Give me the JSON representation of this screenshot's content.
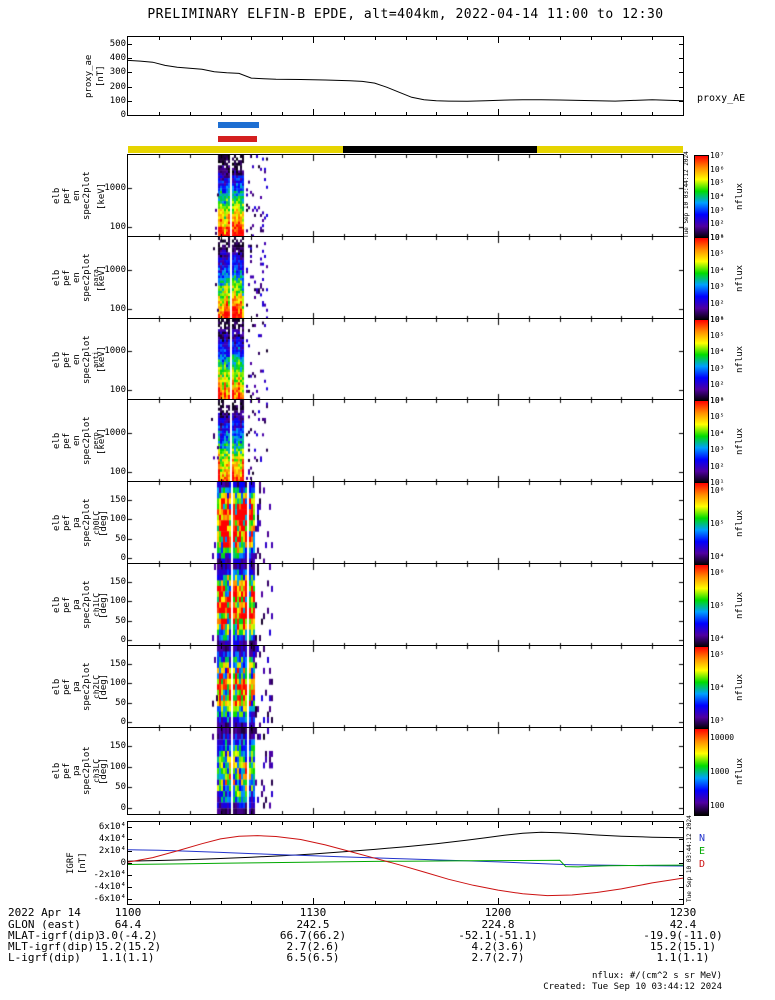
{
  "title": "PRELIMINARY ELFIN-B EPDE, alt=404km, 2022-04-14 11:00 to 12:30",
  "proxy_panel": {
    "ylabel_lines": [
      "proxy_ae",
      "[nT]"
    ],
    "ytick_labels": [
      "500",
      "400",
      "300",
      "200",
      "100",
      "0"
    ],
    "ytick_values": [
      500,
      400,
      300,
      200,
      100,
      0
    ],
    "right_label": "proxy_AE"
  },
  "status_bars": {
    "blue": "#1e6fd2",
    "red": "#d42020",
    "yellow": "#e6d400",
    "black_segment": "#000000",
    "blue_span_minutes": [
      14.6,
      21.3
    ],
    "red_span_minutes": [
      14.6,
      20.9
    ],
    "black_span_minutes": [
      34.9,
      66.3
    ]
  },
  "colormap": {
    "name": "rainbow",
    "stops": [
      "#000000",
      "#5000a0",
      "#0000ff",
      "#00a0ff",
      "#00dc00",
      "#ffff00",
      "#ff8c00",
      "#ff0000"
    ]
  },
  "spectro_panels": [
    {
      "label_lines": [
        "elb",
        "pef",
        "en",
        "spec2plot"
      ],
      "sub": "",
      "unit": "[keV]",
      "ytick_labels": [
        "1000",
        "100"
      ],
      "colorbar_ticks": [
        "10⁷",
        "10⁶",
        "10⁵",
        "10⁴",
        "10³",
        "10²",
        "10¹"
      ],
      "colorbar_label": "nflux"
    },
    {
      "label_lines": [
        "elb",
        "pef",
        "en",
        "spec2plot"
      ],
      "sub": "para",
      "unit": "[keV]",
      "ytick_labels": [
        "1000",
        "100"
      ],
      "colorbar_ticks": [
        "10⁶",
        "10⁵",
        "10⁴",
        "10³",
        "10²",
        "10¹"
      ],
      "colorbar_label": "nflux"
    },
    {
      "label_lines": [
        "elb",
        "pef",
        "en",
        "spec2plot"
      ],
      "sub": "anti",
      "unit": "[keV]",
      "ytick_labels": [
        "1000",
        "100"
      ],
      "colorbar_ticks": [
        "10⁶",
        "10⁵",
        "10⁴",
        "10³",
        "10²",
        "10¹"
      ],
      "colorbar_label": "nflux"
    },
    {
      "label_lines": [
        "elb",
        "pef",
        "en",
        "spec2plot"
      ],
      "sub": "perp",
      "unit": "[keV]",
      "ytick_labels": [
        "1000",
        "100"
      ],
      "colorbar_ticks": [
        "10⁶",
        "10⁵",
        "10⁴",
        "10³",
        "10²",
        "10¹"
      ],
      "colorbar_label": "nflux"
    },
    {
      "label_lines": [
        "elb",
        "pef",
        "pa",
        "spec2plot"
      ],
      "sub": "ch0LC",
      "unit": "[deg]",
      "ytick_labels": [
        "150",
        "100",
        "50",
        "0"
      ],
      "colorbar_ticks": [
        "10⁶",
        "10⁵",
        "10⁴"
      ],
      "colorbar_label": "nflux"
    },
    {
      "label_lines": [
        "elb",
        "pef",
        "pa",
        "spec2plot"
      ],
      "sub": "ch1LC",
      "unit": "[deg]",
      "ytick_labels": [
        "150",
        "100",
        "50",
        "0"
      ],
      "colorbar_ticks": [
        "10⁶",
        "10⁵",
        "10⁴"
      ],
      "colorbar_label": "nflux"
    },
    {
      "label_lines": [
        "elb",
        "pef",
        "pa",
        "spec2plot"
      ],
      "sub": "ch2LC",
      "unit": "[deg]",
      "ytick_labels": [
        "150",
        "100",
        "50",
        "0"
      ],
      "colorbar_ticks": [
        "10⁵",
        "10⁴",
        "10³"
      ],
      "colorbar_label": "nflux"
    },
    {
      "label_lines": [
        "elb",
        "pef",
        "pa",
        "spec2plot"
      ],
      "sub": "ch3LC",
      "unit": "[deg]",
      "ytick_labels": [
        "150",
        "100",
        "50",
        "0"
      ],
      "colorbar_ticks": [
        "10000",
        "1000",
        "100"
      ],
      "colorbar_label": "nflux"
    }
  ],
  "igrf_panel": {
    "ylabel_lines": [
      "IGRF",
      "[nT]"
    ],
    "ytick_labels": [
      "6x10⁴",
      "4x10⁴",
      "2x10⁴",
      "0",
      "-2x10⁴",
      "-4x10⁴",
      "-6x10⁴"
    ],
    "ytick_values": [
      60000,
      40000,
      20000,
      0,
      -20000,
      -40000,
      -60000
    ],
    "series_labels": [
      {
        "text": "N",
        "color": "#2233cc"
      },
      {
        "text": "E",
        "color": "#00a800"
      },
      {
        "text": "D",
        "color": "#cc1111"
      }
    ]
  },
  "xaxis": {
    "tick_labels": [
      "1100",
      "1130",
      "1200",
      "1230"
    ],
    "tick_minutes": [
      0,
      30,
      60,
      90
    ]
  },
  "footer_rows": [
    {
      "label": "2022 Apr 14",
      "values": [
        "1100",
        "1130",
        "1200",
        "1230"
      ]
    },
    {
      "label": "GLON (east)",
      "values": [
        "64.4",
        "242.5",
        "224.8",
        "42.4"
      ]
    },
    {
      "label": "MLAT-igrf(dip)",
      "values": [
        "3.0(-4.2)",
        "66.7(66.2)",
        "-52.1(-51.1)",
        "-19.9(-11.0)"
      ]
    },
    {
      "label": "MLT-igrf(dip)",
      "values": [
        "15.2(15.2)",
        "2.7(2.6)",
        "4.2(3.6)",
        "15.2(15.1)"
      ]
    },
    {
      "label": "L-igrf(dip)",
      "values": [
        "1.1(1.1)",
        "6.5(6.5)",
        "2.7(2.7)",
        "1.1(1.1)"
      ]
    }
  ],
  "notes": {
    "nflux_units": "nflux: #/(cm^2 s sr MeV)",
    "created": "Created: Tue Sep 10 03:44:12 2024"
  },
  "side_timestamp": "Tue Sep 10 03:44:12 2024",
  "chart_data": [
    {
      "type": "line",
      "name": "proxy_AE",
      "ylabel": "proxy_ae [nT]",
      "ylim": [
        0,
        550
      ],
      "x_minutes": [
        0,
        2,
        4,
        6,
        8,
        10,
        12,
        14,
        16,
        18,
        20,
        22,
        24,
        26,
        28,
        30,
        32,
        34,
        36,
        38,
        40,
        42,
        44,
        46,
        48,
        50,
        52,
        55,
        58,
        61,
        64,
        67,
        70,
        73,
        76,
        79,
        82,
        85,
        88,
        90
      ],
      "values": [
        385,
        380,
        372,
        350,
        337,
        330,
        322,
        305,
        298,
        293,
        260,
        255,
        252,
        251,
        250,
        249,
        247,
        244,
        241,
        237,
        225,
        195,
        160,
        125,
        107,
        100,
        98,
        97,
        100,
        105,
        108,
        108,
        106,
        103,
        100,
        98,
        103,
        107,
        103,
        100
      ],
      "color": "#000000"
    },
    {
      "type": "heatmap",
      "name": "elb_pef_en_spec2plot",
      "variant": "omni",
      "ylabel": "energy [keV]",
      "yscale": "log",
      "ylim": [
        55,
        7000
      ],
      "x_minutes_range": [
        0,
        90
      ],
      "flux_decades": [
        1,
        7
      ],
      "burst_minutes": [
        14.6,
        19.2
      ],
      "speckles_until_min": 22.5,
      "summary": "Single intense electron precipitation burst ~1115-1119 UT; flux ~10^7 at lowest energies falling to ~10^1-10^2 above 1 MeV; no counts elsewhere."
    },
    {
      "type": "heatmap",
      "name": "elb_pef_en_spec2plot",
      "variant": "para",
      "ylabel": "energy [keV]",
      "yscale": "log",
      "ylim": [
        55,
        7000
      ],
      "x_minutes_range": [
        0,
        90
      ],
      "flux_decades": [
        1,
        6
      ],
      "burst_minutes": [
        14.6,
        19.2
      ],
      "speckles_until_min": 22.5,
      "summary": "Parallel (precipitating) electron energy flux burst ~1115-1119 UT."
    },
    {
      "type": "heatmap",
      "name": "elb_pef_en_spec2plot",
      "variant": "anti",
      "ylabel": "energy [keV]",
      "yscale": "log",
      "ylim": [
        55,
        7000
      ],
      "x_minutes_range": [
        0,
        90
      ],
      "flux_decades": [
        1,
        6
      ],
      "burst_minutes": [
        14.6,
        19.2
      ],
      "speckles_until_min": 22.5,
      "summary": "Anti-parallel (backscattered) electron energy flux burst ~1115-1119 UT."
    },
    {
      "type": "heatmap",
      "name": "elb_pef_en_spec2plot",
      "variant": "perp",
      "ylabel": "energy [keV]",
      "yscale": "log",
      "ylim": [
        55,
        7000
      ],
      "x_minutes_range": [
        0,
        90
      ],
      "flux_decades": [
        1,
        6
      ],
      "burst_minutes": [
        14.6,
        19.2
      ],
      "speckles_until_min": 22.5,
      "summary": "Perpendicular (trapped) electron energy flux burst ~1115-1119 UT."
    },
    {
      "type": "heatmap",
      "name": "elb_pef_pa_spec2plot",
      "variant": "ch0LC",
      "ylabel": "pitch angle [deg]",
      "yscale": "linear",
      "ylim": [
        0,
        180
      ],
      "x_minutes_range": [
        0,
        90
      ],
      "flux_decades": [
        4,
        6
      ],
      "burst_minutes": [
        14.4,
        20.6
      ],
      "speckles_until_min": 23.2,
      "summary": "Pitch-angle spectrogram, lowest energy channel, during ~1115-1120 UT burst."
    },
    {
      "type": "heatmap",
      "name": "elb_pef_pa_spec2plot",
      "variant": "ch1LC",
      "ylabel": "pitch angle [deg]",
      "yscale": "linear",
      "ylim": [
        0,
        180
      ],
      "x_minutes_range": [
        0,
        90
      ],
      "flux_decades": [
        4,
        6
      ],
      "burst_minutes": [
        14.4,
        20.6
      ],
      "speckles_until_min": 23.2,
      "summary": "Pitch-angle spectrogram, channel 1, during ~1115-1120 UT burst."
    },
    {
      "type": "heatmap",
      "name": "elb_pef_pa_spec2plot",
      "variant": "ch2LC",
      "ylabel": "pitch angle [deg]",
      "yscale": "linear",
      "ylim": [
        0,
        180
      ],
      "x_minutes_range": [
        0,
        90
      ],
      "flux_decades": [
        3,
        5
      ],
      "burst_minutes": [
        14.4,
        20.6
      ],
      "speckles_until_min": 23.2,
      "summary": "Pitch-angle spectrogram, channel 2, during ~1115-1120 UT burst."
    },
    {
      "type": "heatmap",
      "name": "elb_pef_pa_spec2plot",
      "variant": "ch3LC",
      "ylabel": "pitch angle [deg]",
      "yscale": "linear",
      "ylim": [
        0,
        180
      ],
      "x_minutes_range": [
        0,
        90
      ],
      "flux_decades": [
        2,
        4
      ],
      "burst_minutes": [
        14.4,
        20.6
      ],
      "speckles_until_min": 23.2,
      "summary": "Pitch-angle spectrogram, highest energy channel, weakest fluxes."
    },
    {
      "type": "line",
      "name": "IGRF model field",
      "ylabel": "IGRF [nT]",
      "ylim": [
        -68000,
        68000
      ],
      "x_minutes_range": [
        0,
        90
      ],
      "series": [
        {
          "name": "B (black)",
          "color": "#000000",
          "x_minutes": [
            0,
            5,
            10,
            15,
            20,
            25,
            30,
            35,
            40,
            45,
            50,
            55,
            58,
            61,
            64,
            67,
            70,
            73,
            76,
            80,
            85,
            90
          ],
          "values": [
            3000,
            4200,
            5600,
            7500,
            9600,
            12000,
            15000,
            18500,
            22500,
            27000,
            32000,
            38000,
            42000,
            46000,
            49500,
            51000,
            50200,
            48500,
            46500,
            44500,
            42800,
            42000
          ]
        },
        {
          "name": "N",
          "color": "#2233cc",
          "x_minutes": [
            0,
            5,
            10,
            15,
            20,
            25,
            30,
            35,
            40,
            45,
            50,
            55,
            60,
            63,
            66,
            69,
            72,
            75,
            80,
            85,
            90
          ],
          "values": [
            22000,
            21000,
            19500,
            17600,
            15600,
            13800,
            12000,
            10200,
            8500,
            6800,
            5100,
            3500,
            1900,
            700,
            -700,
            -1800,
            -2800,
            -3400,
            -4000,
            -4600,
            -5000
          ]
        },
        {
          "name": "E",
          "color": "#00a800",
          "x_minutes": [
            0,
            5,
            10,
            15,
            20,
            25,
            30,
            35,
            40,
            45,
            50,
            55,
            60,
            64,
            68,
            70,
            71,
            73,
            75,
            78,
            82,
            86,
            90
          ],
          "values": [
            -2500,
            -1900,
            -1200,
            -500,
            200,
            800,
            1500,
            2100,
            2600,
            3000,
            3300,
            3600,
            3900,
            4100,
            4300,
            4400,
            -6000,
            -6500,
            -5300,
            -4700,
            -4200,
            -3800,
            -3500
          ]
        },
        {
          "name": "D",
          "color": "#cc1111",
          "x_minutes": [
            0,
            4,
            8,
            12,
            15,
            18,
            21,
            24,
            28,
            32,
            36,
            40,
            44,
            48,
            52,
            56,
            60,
            64,
            68,
            72,
            76,
            80,
            85,
            90
          ],
          "values": [
            1500,
            9000,
            20000,
            32000,
            40000,
            44500,
            45500,
            44000,
            39000,
            30000,
            19000,
            8000,
            -3000,
            -15000,
            -27000,
            -37000,
            -45000,
            -51000,
            -54000,
            -53000,
            -49000,
            -43000,
            -33000,
            -25000
          ]
        }
      ]
    }
  ]
}
